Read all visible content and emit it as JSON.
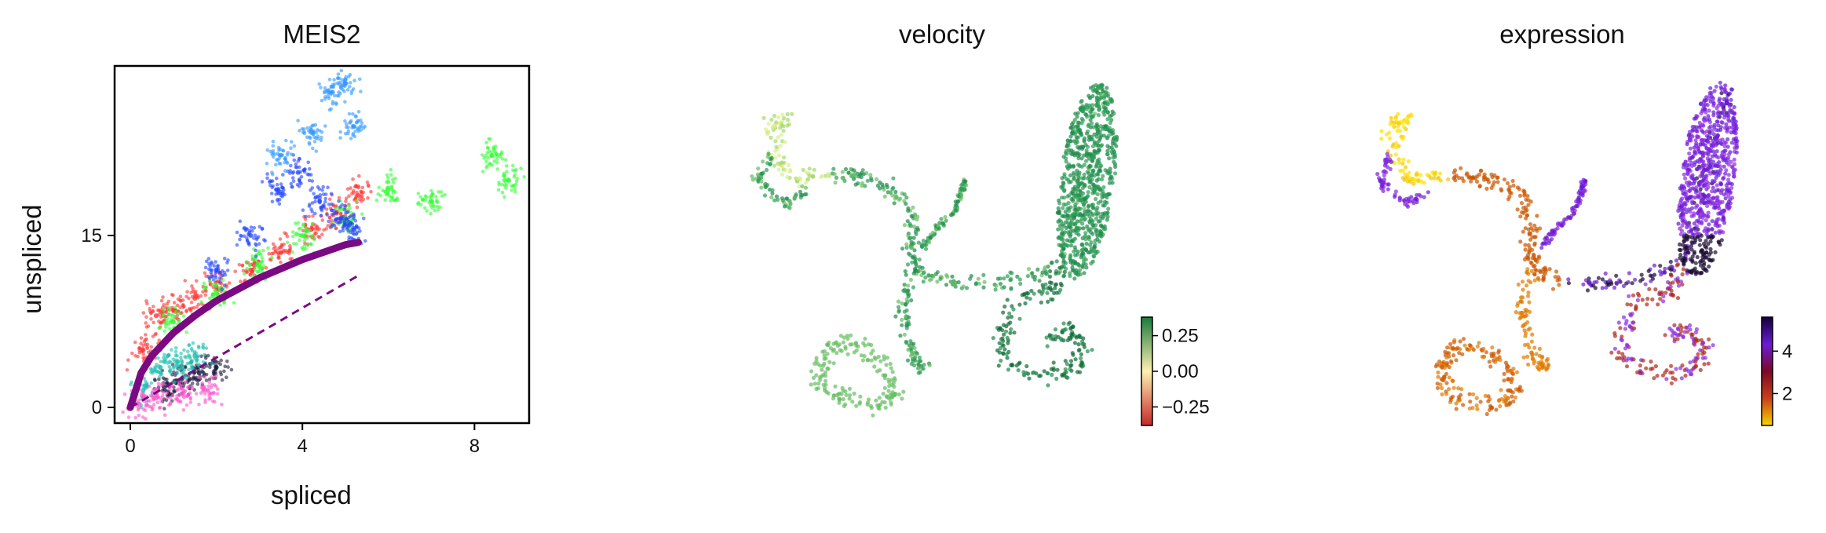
{
  "chart_data": [
    {
      "type": "scatter",
      "title": "MEIS2",
      "xlabel": "spliced",
      "ylabel": "unspliced",
      "xlim": [
        -0.5,
        9.2
      ],
      "ylim": [
        -1.2,
        30
      ],
      "xticks": [
        "0",
        "4",
        "8"
      ],
      "yticks": [
        "0",
        "15"
      ],
      "series": [
        {
          "color": "#ff3333",
          "x": [
            0.3,
            0.6,
            1.0,
            1.5,
            2.0,
            2.8,
            3.5,
            4.2,
            4.8,
            5.3
          ],
          "y": [
            5.0,
            8.0,
            8.5,
            9.5,
            10.5,
            12.0,
            13.5,
            15.5,
            17.0,
            18.5
          ]
        },
        {
          "color": "#33ff33",
          "x": [
            1.0,
            2.0,
            3.0,
            4.0,
            5.0,
            6.0,
            7.0,
            8.4,
            8.8
          ],
          "y": [
            7.5,
            10.0,
            12.5,
            15.0,
            16.5,
            19.0,
            18.0,
            22.0,
            19.8
          ]
        },
        {
          "color": "#2244ff",
          "x": [
            2.0,
            2.8,
            3.4,
            3.9,
            4.4,
            4.9,
            5.2
          ],
          "y": [
            12.0,
            15.0,
            19.0,
            20.5,
            18.0,
            16.5,
            15.5
          ]
        },
        {
          "color": "#3399ff",
          "x": [
            3.5,
            4.2,
            4.7,
            5.0,
            5.2
          ],
          "y": [
            22.0,
            24.0,
            27.5,
            28.3,
            24.5
          ]
        },
        {
          "color": "#1a1a40",
          "x": [
            0.8,
            1.2,
            1.6,
            2.0
          ],
          "y": [
            1.5,
            2.5,
            3.0,
            3.5
          ]
        },
        {
          "color": "#20c0b0",
          "x": [
            0.3,
            0.7,
            1.1,
            1.5
          ],
          "y": [
            1.5,
            3.5,
            4.0,
            4.5
          ]
        },
        {
          "color": "#ff55cc",
          "x": [
            0.2,
            0.6,
            1.2,
            1.8
          ],
          "y": [
            0.3,
            0.8,
            1.2,
            1.5
          ]
        }
      ],
      "fit_curve": {
        "color": "#7a0a82",
        "x": [
          0.0,
          0.25,
          0.5,
          1.0,
          1.5,
          2.0,
          3.0,
          4.0,
          5.0,
          5.3
        ],
        "y": [
          0.0,
          3.0,
          4.5,
          6.5,
          8.0,
          9.3,
          11.3,
          12.9,
          14.2,
          14.4
        ]
      },
      "steady_state_line": {
        "color": "#7a0a82",
        "x": [
          0.0,
          5.3
        ],
        "y": [
          0.0,
          11.5
        ]
      }
    },
    {
      "type": "scatter",
      "title": "velocity",
      "colorbar": {
        "colormap": [
          "#c62828",
          "#fdf0b0",
          "#1a7a3c"
        ],
        "ticks": [
          "0.25",
          "0.00",
          "−0.25"
        ],
        "values": [
          0.25,
          0.0,
          -0.25
        ],
        "range": [
          -0.38,
          0.38
        ]
      }
    },
    {
      "type": "scatter",
      "title": "expression",
      "colorbar": {
        "colormap": [
          "#f5d400",
          "#c8401a",
          "#7a0a25",
          "#6a1bd6",
          "#12003a"
        ],
        "ticks": [
          "4",
          "2"
        ],
        "values": [
          4,
          2
        ],
        "range": [
          0.5,
          5.6
        ]
      }
    }
  ]
}
